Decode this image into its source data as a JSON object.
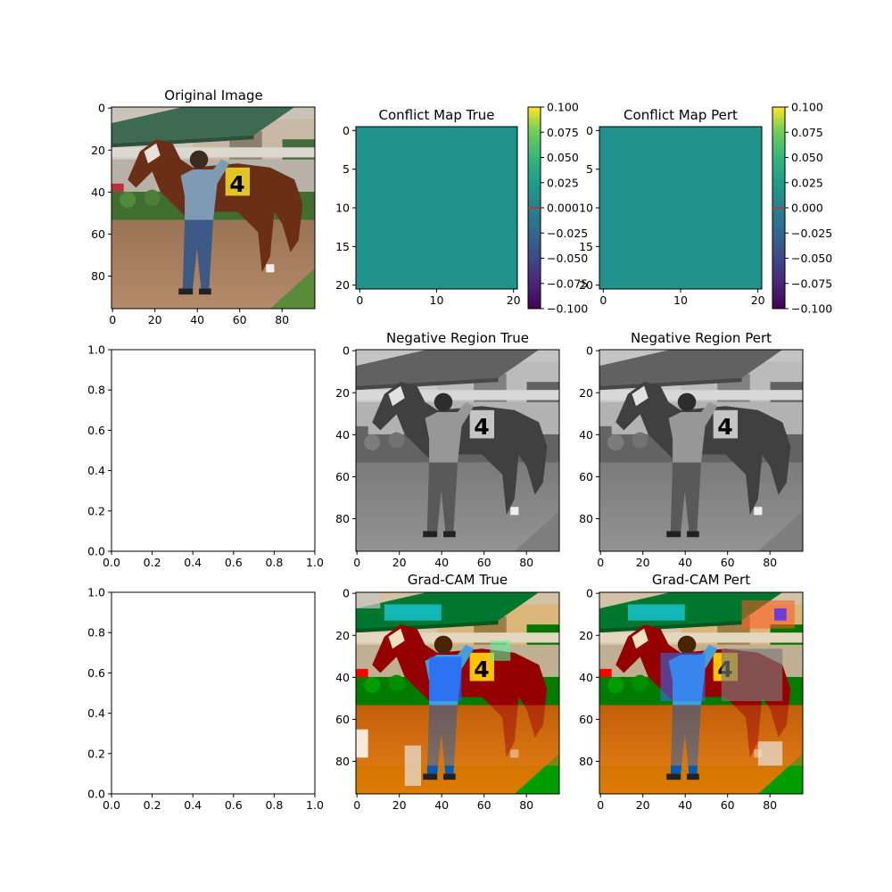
{
  "figure": {
    "panels": [
      {
        "id": "orig",
        "title": "Original Image",
        "type": "image",
        "variant": "color",
        "xticks": [
          0,
          20,
          40,
          60,
          80
        ],
        "yticks": [
          0,
          20,
          40,
          60,
          80
        ],
        "extent": [
          96,
          96
        ]
      },
      {
        "id": "cmt",
        "title": "Conflict Map True",
        "type": "heatmap",
        "color": "#21918c",
        "xticks": [
          0,
          10,
          20
        ],
        "yticks": [
          0,
          5,
          10,
          15,
          20
        ],
        "extent": [
          21,
          21
        ]
      },
      {
        "id": "cmp",
        "title": "Conflict Map Pert",
        "type": "heatmap",
        "color": "#21918c",
        "xticks": [
          0,
          10,
          20
        ],
        "yticks": [
          0,
          5,
          10,
          15,
          20
        ],
        "extent": [
          21,
          21
        ]
      },
      {
        "id": "empty1",
        "title": "",
        "type": "empty",
        "xticks": [
          "0.0",
          "0.2",
          "0.4",
          "0.6",
          "0.8",
          "1.0"
        ],
        "yticks": [
          "0.0",
          "0.2",
          "0.4",
          "0.6",
          "0.8",
          "1.0"
        ]
      },
      {
        "id": "nrt",
        "title": "Negative Region True",
        "type": "image",
        "variant": "gray",
        "xticks": [
          0,
          20,
          40,
          60,
          80
        ],
        "yticks": [
          0,
          20,
          40,
          60,
          80
        ],
        "extent": [
          96,
          96
        ]
      },
      {
        "id": "nrp",
        "title": "Negative Region Pert",
        "type": "image",
        "variant": "gray",
        "xticks": [
          0,
          20,
          40,
          60,
          80
        ],
        "yticks": [
          0,
          20,
          40,
          60,
          80
        ],
        "extent": [
          96,
          96
        ]
      },
      {
        "id": "empty2",
        "title": "",
        "type": "empty",
        "xticks": [
          "0.0",
          "0.2",
          "0.4",
          "0.6",
          "0.8",
          "1.0"
        ],
        "yticks": [
          "0.0",
          "0.2",
          "0.4",
          "0.6",
          "0.8",
          "1.0"
        ]
      },
      {
        "id": "gct",
        "title": "Grad-CAM True",
        "type": "image",
        "variant": "gradcam",
        "xticks": [
          0,
          20,
          40,
          60,
          80
        ],
        "yticks": [
          0,
          20,
          40,
          60,
          80
        ],
        "extent": [
          96,
          96
        ]
      },
      {
        "id": "gcp",
        "title": "Grad-CAM Pert",
        "type": "image",
        "variant": "gradcam2",
        "xticks": [
          0,
          20,
          40,
          60,
          80
        ],
        "yticks": [
          0,
          20,
          40,
          60,
          80
        ],
        "extent": [
          96,
          96
        ]
      }
    ],
    "colorbars": [
      {
        "for": "cmt",
        "cmap": "viridis",
        "ticks": [
          "0.100",
          "0.075",
          "0.050",
          "0.025",
          "0.000",
          "−0.025",
          "−0.050",
          "−0.075",
          "−0.100"
        ],
        "range": [
          -0.1,
          0.1
        ],
        "marker_value": 0.0,
        "marker_color": "#d62728"
      },
      {
        "for": "cmp",
        "cmap": "viridis",
        "ticks": [
          "0.100",
          "0.075",
          "0.050",
          "0.025",
          "0.000",
          "−0.025",
          "−0.050",
          "−0.075",
          "−0.100"
        ],
        "range": [
          -0.1,
          0.1
        ],
        "marker_value": 0.0,
        "marker_color": "#d62728"
      }
    ]
  },
  "chart_data": [
    {
      "type": "heatmap",
      "title": "Conflict Map True",
      "x_range": [
        0,
        20
      ],
      "y_range": [
        0,
        20
      ],
      "constant_value": 0.0,
      "clim": [
        -0.1,
        0.1
      ],
      "colorbar": "viridis"
    },
    {
      "type": "heatmap",
      "title": "Conflict Map Pert",
      "x_range": [
        0,
        20
      ],
      "y_range": [
        0,
        20
      ],
      "constant_value": 0.0,
      "clim": [
        -0.1,
        0.1
      ],
      "colorbar": "viridis"
    }
  ]
}
